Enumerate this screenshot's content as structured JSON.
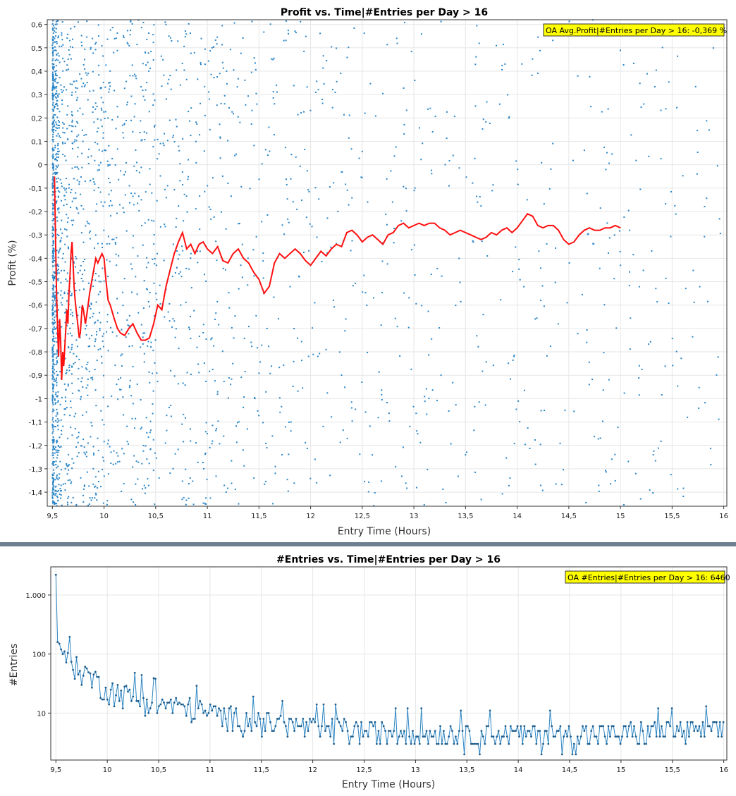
{
  "colors": {
    "scatter": "#2a86c8",
    "avg_line": "#ff1010",
    "entries_line": "#2f86c3",
    "legend_bg": "#ffff00",
    "divider": "#6f7f90",
    "grid": "#e6e6e6"
  },
  "chart_data": [
    {
      "type": "scatter",
      "title": "Profit vs. Time|#Entries per Day > 16",
      "xlabel": "Entry Time (Hours)",
      "ylabel": "Profit (%)",
      "xlim": [
        9.45,
        16.03
      ],
      "ylim": [
        -1.46,
        0.62
      ],
      "grid": true,
      "legend_position": "top-right",
      "legend": "OA Avg.Profit|#Entries per Day > 16: -0,369 %",
      "x_ticks": [
        9.5,
        10,
        10.5,
        11,
        11.5,
        12,
        12.5,
        13,
        13.5,
        14,
        14.5,
        15,
        15.5,
        16
      ],
      "x_tick_labels": [
        "9,5",
        "10",
        "10,5",
        "11",
        "11,5",
        "12",
        "12,5",
        "13",
        "13,5",
        "14",
        "14,5",
        "15",
        "15,5",
        "16"
      ],
      "y_ticks": [
        0.6,
        0.5,
        0.4,
        0.3,
        0.2,
        0.1,
        0,
        -0.1,
        -0.2,
        -0.3,
        -0.4,
        -0.5,
        -0.6,
        -0.7,
        -0.8,
        -0.9,
        -1,
        -1.1,
        -1.2,
        -1.3,
        -1.4
      ],
      "y_tick_labels": [
        "0,6",
        "0,5",
        "0,4",
        "0,3",
        "0,2",
        "0,1",
        "0",
        "-0,1",
        "-0,2",
        "-0,3",
        "-0,4",
        "-0,5",
        "-0,6",
        "-0,7",
        "-0,8",
        "-0,9",
        "-1",
        "-1,1",
        "-1,2",
        "-1,3",
        "-1,4"
      ],
      "series": [
        {
          "kind": "scatter",
          "density": [
            [
              9.5,
              9.56,
              400
            ],
            [
              9.56,
              9.7,
              260
            ],
            [
              9.7,
              10.0,
              320
            ],
            [
              10.0,
              10.5,
              320
            ],
            [
              10.5,
              11.0,
              200
            ],
            [
              11.0,
              11.5,
              150
            ],
            [
              11.5,
              12.0,
              110
            ],
            [
              12.0,
              13.0,
              150
            ],
            [
              13.0,
              14.0,
              120
            ],
            [
              14.0,
              15.0,
              110
            ],
            [
              15.0,
              16.0,
              100
            ]
          ]
        },
        {
          "kind": "line",
          "points": [
            [
              9.52,
              -0.05
            ],
            [
              9.53,
              -0.3
            ],
            [
              9.54,
              -0.55
            ],
            [
              9.55,
              -0.7
            ],
            [
              9.56,
              -0.82
            ],
            [
              9.57,
              -0.66
            ],
            [
              9.58,
              -0.75
            ],
            [
              9.59,
              -0.92
            ],
            [
              9.6,
              -0.8
            ],
            [
              9.61,
              -0.86
            ],
            [
              9.62,
              -0.78
            ],
            [
              9.63,
              -0.7
            ],
            [
              9.64,
              -0.62
            ],
            [
              9.65,
              -0.68
            ],
            [
              9.66,
              -0.55
            ],
            [
              9.67,
              -0.48
            ],
            [
              9.68,
              -0.38
            ],
            [
              9.69,
              -0.33
            ],
            [
              9.7,
              -0.42
            ],
            [
              9.71,
              -0.52
            ],
            [
              9.72,
              -0.58
            ],
            [
              9.73,
              -0.62
            ],
            [
              9.74,
              -0.66
            ],
            [
              9.75,
              -0.7
            ],
            [
              9.76,
              -0.74
            ],
            [
              9.77,
              -0.72
            ],
            [
              9.78,
              -0.66
            ],
            [
              9.79,
              -0.6
            ],
            [
              9.8,
              -0.62
            ],
            [
              9.82,
              -0.68
            ],
            [
              9.84,
              -0.62
            ],
            [
              9.86,
              -0.55
            ],
            [
              9.88,
              -0.5
            ],
            [
              9.9,
              -0.45
            ],
            [
              9.92,
              -0.4
            ],
            [
              9.94,
              -0.42
            ],
            [
              9.96,
              -0.4
            ],
            [
              9.98,
              -0.38
            ],
            [
              10.0,
              -0.4
            ],
            [
              10.02,
              -0.5
            ],
            [
              10.04,
              -0.58
            ],
            [
              10.06,
              -0.6
            ],
            [
              10.08,
              -0.63
            ],
            [
              10.1,
              -0.66
            ],
            [
              10.13,
              -0.7
            ],
            [
              10.16,
              -0.72
            ],
            [
              10.2,
              -0.73
            ],
            [
              10.24,
              -0.7
            ],
            [
              10.28,
              -0.68
            ],
            [
              10.32,
              -0.72
            ],
            [
              10.36,
              -0.75
            ],
            [
              10.4,
              -0.75
            ],
            [
              10.44,
              -0.74
            ],
            [
              10.48,
              -0.68
            ],
            [
              10.52,
              -0.6
            ],
            [
              10.56,
              -0.62
            ],
            [
              10.6,
              -0.52
            ],
            [
              10.64,
              -0.45
            ],
            [
              10.68,
              -0.38
            ],
            [
              10.72,
              -0.33
            ],
            [
              10.76,
              -0.29
            ],
            [
              10.8,
              -0.36
            ],
            [
              10.84,
              -0.34
            ],
            [
              10.88,
              -0.38
            ],
            [
              10.92,
              -0.34
            ],
            [
              10.96,
              -0.33
            ],
            [
              11.0,
              -0.36
            ],
            [
              11.05,
              -0.38
            ],
            [
              11.1,
              -0.35
            ],
            [
              11.15,
              -0.41
            ],
            [
              11.2,
              -0.42
            ],
            [
              11.25,
              -0.38
            ],
            [
              11.3,
              -0.36
            ],
            [
              11.35,
              -0.4
            ],
            [
              11.4,
              -0.42
            ],
            [
              11.45,
              -0.46
            ],
            [
              11.5,
              -0.49
            ],
            [
              11.55,
              -0.55
            ],
            [
              11.6,
              -0.52
            ],
            [
              11.65,
              -0.42
            ],
            [
              11.7,
              -0.38
            ],
            [
              11.75,
              -0.4
            ],
            [
              11.8,
              -0.38
            ],
            [
              11.85,
              -0.36
            ],
            [
              11.9,
              -0.38
            ],
            [
              11.95,
              -0.41
            ],
            [
              12.0,
              -0.43
            ],
            [
              12.05,
              -0.4
            ],
            [
              12.1,
              -0.37
            ],
            [
              12.15,
              -0.39
            ],
            [
              12.2,
              -0.36
            ],
            [
              12.25,
              -0.34
            ],
            [
              12.3,
              -0.35
            ],
            [
              12.35,
              -0.29
            ],
            [
              12.4,
              -0.28
            ],
            [
              12.45,
              -0.3
            ],
            [
              12.5,
              -0.33
            ],
            [
              12.55,
              -0.31
            ],
            [
              12.6,
              -0.3
            ],
            [
              12.65,
              -0.32
            ],
            [
              12.7,
              -0.34
            ],
            [
              12.75,
              -0.3
            ],
            [
              12.8,
              -0.29
            ],
            [
              12.85,
              -0.26
            ],
            [
              12.9,
              -0.25
            ],
            [
              12.95,
              -0.27
            ],
            [
              13.0,
              -0.26
            ],
            [
              13.05,
              -0.25
            ],
            [
              13.1,
              -0.26
            ],
            [
              13.15,
              -0.25
            ],
            [
              13.2,
              -0.25
            ],
            [
              13.25,
              -0.27
            ],
            [
              13.3,
              -0.28
            ],
            [
              13.35,
              -0.3
            ],
            [
              13.4,
              -0.29
            ],
            [
              13.45,
              -0.28
            ],
            [
              13.5,
              -0.29
            ],
            [
              13.55,
              -0.3
            ],
            [
              13.6,
              -0.31
            ],
            [
              13.65,
              -0.32
            ],
            [
              13.7,
              -0.31
            ],
            [
              13.75,
              -0.29
            ],
            [
              13.8,
              -0.3
            ],
            [
              13.85,
              -0.28
            ],
            [
              13.9,
              -0.27
            ],
            [
              13.95,
              -0.29
            ],
            [
              14.0,
              -0.27
            ],
            [
              14.05,
              -0.24
            ],
            [
              14.1,
              -0.21
            ],
            [
              14.15,
              -0.22
            ],
            [
              14.2,
              -0.26
            ],
            [
              14.25,
              -0.27
            ],
            [
              14.3,
              -0.26
            ],
            [
              14.35,
              -0.26
            ],
            [
              14.4,
              -0.28
            ],
            [
              14.45,
              -0.32
            ],
            [
              14.5,
              -0.34
            ],
            [
              14.55,
              -0.33
            ],
            [
              14.6,
              -0.3
            ],
            [
              14.65,
              -0.28
            ],
            [
              14.7,
              -0.27
            ],
            [
              14.75,
              -0.28
            ],
            [
              14.8,
              -0.28
            ],
            [
              14.85,
              -0.27
            ],
            [
              14.9,
              -0.27
            ],
            [
              14.95,
              -0.26
            ],
            [
              15.0,
              -0.27
            ]
          ]
        }
      ]
    },
    {
      "type": "line",
      "title": "#Entries vs. Time|#Entries per Day > 16",
      "xlabel": "Entry Time (Hours)",
      "ylabel": "#Entries",
      "yscale": "log",
      "xlim": [
        9.45,
        16.03
      ],
      "ylim": [
        1.6,
        3000
      ],
      "grid": true,
      "legend_position": "top-right",
      "legend": "OA #Entries|#Entries per Day > 16: 6460",
      "x_ticks": [
        9.5,
        10,
        10.5,
        11,
        11.5,
        12,
        12.5,
        13,
        13.5,
        14,
        14.5,
        15,
        15.5,
        16
      ],
      "x_tick_labels": [
        "9,5",
        "10",
        "10,5",
        "11",
        "11,5",
        "12",
        "12,5",
        "13",
        "13,5",
        "14",
        "14,5",
        "15",
        "15,5",
        "16"
      ],
      "y_ticks": [
        10,
        100,
        1000
      ],
      "y_tick_labels": [
        "10",
        "100",
        "1.000"
      ],
      "series": [
        {
          "kind": "line",
          "start_x": 9.5,
          "step_x": 0.0167,
          "first_values": [
            2200,
            160,
            150,
            120,
            100
          ],
          "trend": [
            [
              9.58,
              90
            ],
            [
              9.7,
              60
            ],
            [
              9.85,
              40
            ],
            [
              10.0,
              25
            ],
            [
              10.2,
              20
            ],
            [
              10.5,
              14
            ],
            [
              10.8,
              12
            ],
            [
              11.0,
              10
            ],
            [
              11.5,
              7
            ],
            [
              12.0,
              5.5
            ],
            [
              13.0,
              4.5
            ],
            [
              14.0,
              4.2
            ],
            [
              15.0,
              4.5
            ],
            [
              16.0,
              5
            ]
          ]
        }
      ]
    }
  ]
}
